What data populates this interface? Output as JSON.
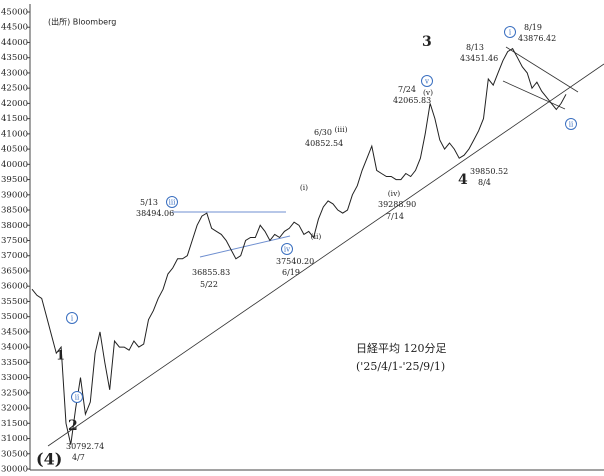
{
  "chart_data": {
    "type": "line",
    "source": "(出所)  Bloomberg",
    "title": "日経平均 120分足",
    "subtitle": "('25/4/1-'25/9/1)",
    "color": "#222222",
    "categories": [
      null,
      null,
      null,
      null,
      null,
      null,
      null,
      null,
      null,
      null,
      null,
      null,
      null,
      null,
      null,
      null,
      null,
      null,
      null,
      null,
      null,
      null,
      null,
      null,
      null,
      null,
      null,
      null,
      null,
      null,
      null,
      null,
      null,
      null,
      null,
      null,
      null,
      null,
      null,
      null,
      null,
      null,
      null,
      null,
      null,
      null,
      null,
      null,
      null,
      null,
      null,
      null,
      null,
      null,
      null,
      null,
      null,
      null,
      null,
      null,
      null,
      null,
      null,
      null,
      null,
      null,
      null,
      null,
      null,
      null,
      null,
      null,
      null,
      null,
      null,
      null,
      null,
      null,
      null,
      null,
      null,
      null,
      null,
      null,
      null,
      null,
      null,
      null,
      null,
      null,
      null,
      null,
      null,
      null,
      null,
      null,
      null,
      null,
      null,
      null,
      null,
      null,
      null,
      null,
      null,
      null,
      null,
      null,
      null,
      null,
      null
    ],
    "values": [
      35900,
      35700,
      35600,
      35000,
      34400,
      33800,
      34000,
      31500,
      30800,
      32000,
      33000,
      31800,
      32200,
      33800,
      34500,
      33500,
      32600,
      34200,
      34000,
      34000,
      33900,
      34200,
      34000,
      34100,
      34900,
      35200,
      35600,
      35900,
      36400,
      36600,
      36900,
      36900,
      37000,
      37500,
      38000,
      38300,
      38400,
      37900,
      37800,
      37700,
      37500,
      37200,
      36900,
      37000,
      37500,
      37600,
      37600,
      38000,
      37800,
      37500,
      37700,
      37600,
      37800,
      37900,
      38100,
      38000,
      37700,
      37800,
      37600,
      38200,
      38600,
      38800,
      38700,
      38500,
      38400,
      38500,
      39000,
      39300,
      39800,
      40200,
      40600,
      39800,
      39700,
      39600,
      39600,
      39500,
      39500,
      39700,
      39600,
      39800,
      40200,
      41000,
      42000,
      41500,
      40800,
      40500,
      40700,
      40500,
      40200,
      40300,
      40500,
      40800,
      41100,
      41500,
      42800,
      42600,
      43000,
      43400,
      43700,
      43800,
      43500,
      43200,
      43000,
      42500,
      42700,
      42400,
      42200,
      42000,
      41800,
      42000,
      42300
    ],
    "ylim": [
      30000,
      45000
    ],
    "yticks": [
      30000,
      30500,
      31000,
      31500,
      32000,
      32500,
      33000,
      33500,
      34000,
      34500,
      35000,
      35500,
      36000,
      36500,
      37000,
      37500,
      38000,
      38500,
      39000,
      39500,
      40000,
      40500,
      41000,
      41500,
      42000,
      42500,
      43000,
      43500,
      44000,
      44500,
      45000
    ],
    "price_labels": [
      "5/13",
      "38494.06",
      "36855.83",
      "5/22",
      "37540.20",
      "6/19",
      "6/30",
      "40852.54",
      "7/24",
      "42065.83",
      "39288.90",
      "7/14",
      "39850.52",
      "8/4",
      "8/13",
      "43451.46",
      "8/19",
      "43876.42",
      "30792.74",
      "4/7"
    ],
    "wave_labels": [
      "1",
      "2",
      "3",
      "4",
      "(4)"
    ],
    "circled_labels": [
      "i",
      "ii",
      "iii",
      "iv",
      "v",
      "i",
      "ii"
    ],
    "minor_labels": [
      "(i)",
      "(ii)",
      "(iii)",
      "(iv)",
      "(v)"
    ]
  }
}
